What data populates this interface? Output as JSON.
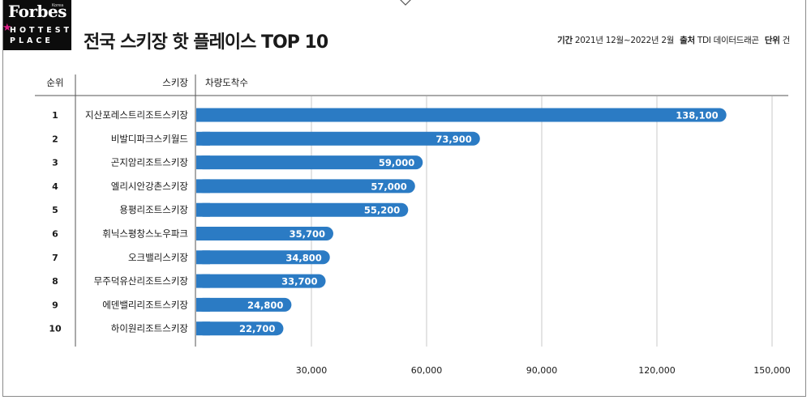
{
  "header": {
    "brand": "Forbes",
    "brand_region": "Korea",
    "badge_line1": "HOTTEST",
    "badge_line2": "PLACE",
    "title": "전국 스키장 핫 플레이스 TOP 10",
    "period_label": "기간",
    "period_value": "2021년 12월~2022년 2월",
    "source_label": "출처",
    "source_value": "TDI 데이터드래곤",
    "unit_label": "단위",
    "unit_value": "건"
  },
  "colors": {
    "bar": "#2b7bc4",
    "grid": "#c8c8c8",
    "accent": "#e0208a"
  },
  "chart_data": {
    "type": "bar",
    "orientation": "horizontal",
    "title": "전국 스키장 핫 플레이스 TOP 10",
    "columns": [
      "순위",
      "스키장",
      "차량도착수"
    ],
    "ranks": [
      "1",
      "2",
      "3",
      "4",
      "5",
      "6",
      "7",
      "8",
      "9",
      "10"
    ],
    "categories": [
      "지산포레스트리조트스키장",
      "비발디파크스키월드",
      "곤지암리조트스키장",
      "엘리시안강촌스키장",
      "용평리조트스키장",
      "휘닉스평창스노우파크",
      "오크밸리스키장",
      "무주덕유산리조트스키장",
      "에덴밸리리조트스키장",
      "하이원리조트스키장"
    ],
    "values": [
      138100,
      73900,
      59000,
      57000,
      55200,
      35700,
      34800,
      33700,
      24800,
      22700
    ],
    "value_labels": [
      "138,100",
      "73,900",
      "59,000",
      "57,000",
      "55,200",
      "35,700",
      "34,800",
      "33,700",
      "24,800",
      "22,700"
    ],
    "xlim": [
      0,
      150000
    ],
    "xticks": [
      30000,
      60000,
      90000,
      120000,
      150000
    ],
    "xtick_labels": [
      "30,000",
      "60,000",
      "90,000",
      "120,000",
      "150,000"
    ],
    "grid": true
  }
}
